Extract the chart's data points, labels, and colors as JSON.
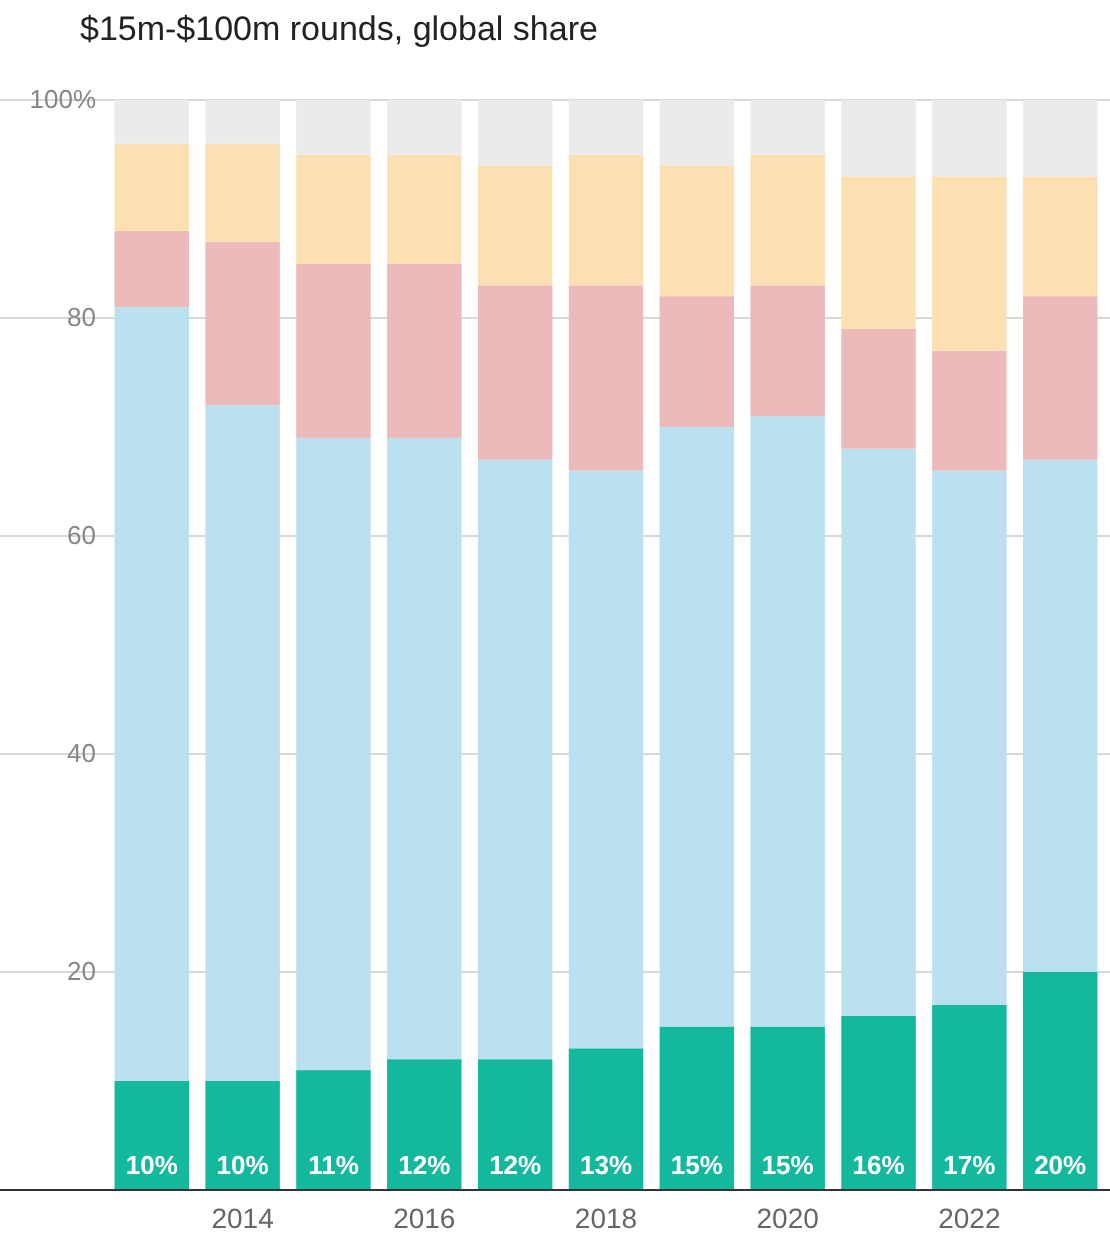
{
  "chart_data": {
    "type": "bar",
    "title": "$15m-$100m rounds, global share",
    "stacked": true,
    "categories": [
      null,
      "2014",
      null,
      "2016",
      null,
      "2018",
      null,
      "2020",
      null,
      "2022",
      null
    ],
    "series": [
      {
        "color": "#14b89c",
        "values": [
          10,
          10,
          11,
          12,
          12,
          13,
          15,
          15,
          16,
          17,
          20
        ],
        "value_labels": [
          "10%",
          "10%",
          "11%",
          "12%",
          "12%",
          "13%",
          "15%",
          "15%",
          "16%",
          "17%",
          "20%"
        ]
      },
      {
        "color": "#bbe1f0",
        "values": [
          71,
          62,
          58,
          57,
          55,
          53,
          55,
          56,
          52,
          49,
          47
        ]
      },
      {
        "color": "#ecbabb",
        "values": [
          7,
          15,
          16,
          16,
          16,
          17,
          12,
          12,
          11,
          11,
          15
        ]
      },
      {
        "color": "#fce0b2",
        "values": [
          8,
          9,
          10,
          10,
          11,
          12,
          12,
          12,
          14,
          16,
          11
        ]
      },
      {
        "color": "#ebebeb",
        "values": [
          4,
          4,
          5,
          5,
          6,
          5,
          6,
          5,
          7,
          7,
          7
        ]
      }
    ],
    "ylim": [
      0,
      100
    ],
    "yticks": [
      20,
      40,
      60,
      80,
      {
        "value": 100,
        "label": "100%"
      }
    ],
    "grid": "y"
  }
}
